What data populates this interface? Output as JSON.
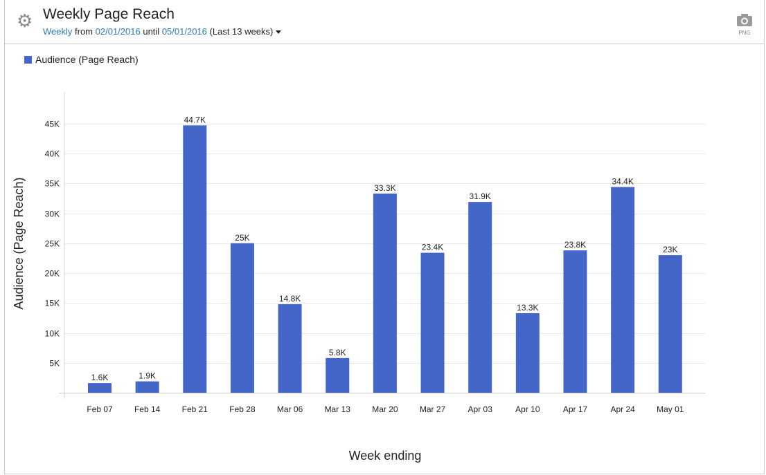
{
  "header": {
    "title": "Weekly Page Reach",
    "interval": "Weekly",
    "from_text": "from",
    "start_date": "02/01/2016",
    "until_text": "until",
    "end_date": "05/01/2016",
    "range_note": "(Last 13 weeks)",
    "settings_icon": "gear-icon",
    "export_icon": "camera-icon",
    "export_label": "PNG"
  },
  "chart_data": {
    "type": "bar",
    "title": "",
    "xlabel": "Week ending",
    "ylabel": "Audience (Page Reach)",
    "categories": [
      "Feb 07",
      "Feb 14",
      "Feb 21",
      "Feb 28",
      "Mar 06",
      "Mar 13",
      "Mar 20",
      "Mar 27",
      "Apr 03",
      "Apr 10",
      "Apr 17",
      "Apr 24",
      "May 01"
    ],
    "series": [
      {
        "name": "Audience (Page Reach)",
        "color": "#4466c8",
        "values": [
          1600,
          1900,
          44700,
          25000,
          14800,
          5800,
          33300,
          23400,
          31900,
          13300,
          23800,
          34400,
          23000
        ],
        "labels": [
          "1.6K",
          "1.9K",
          "44.7K",
          "25K",
          "14.8K",
          "5.8K",
          "33.3K",
          "23.4K",
          "31.9K",
          "13.3K",
          "23.8K",
          "34.4K",
          "23K"
        ]
      }
    ],
    "ylim": [
      0,
      50000
    ],
    "yticks": [
      5000,
      10000,
      15000,
      20000,
      25000,
      30000,
      35000,
      40000,
      45000
    ],
    "ytick_labels": [
      "5K",
      "10K",
      "15K",
      "20K",
      "25K",
      "30K",
      "35K",
      "40K",
      "45K"
    ],
    "grid": true,
    "legend": "top-left"
  }
}
